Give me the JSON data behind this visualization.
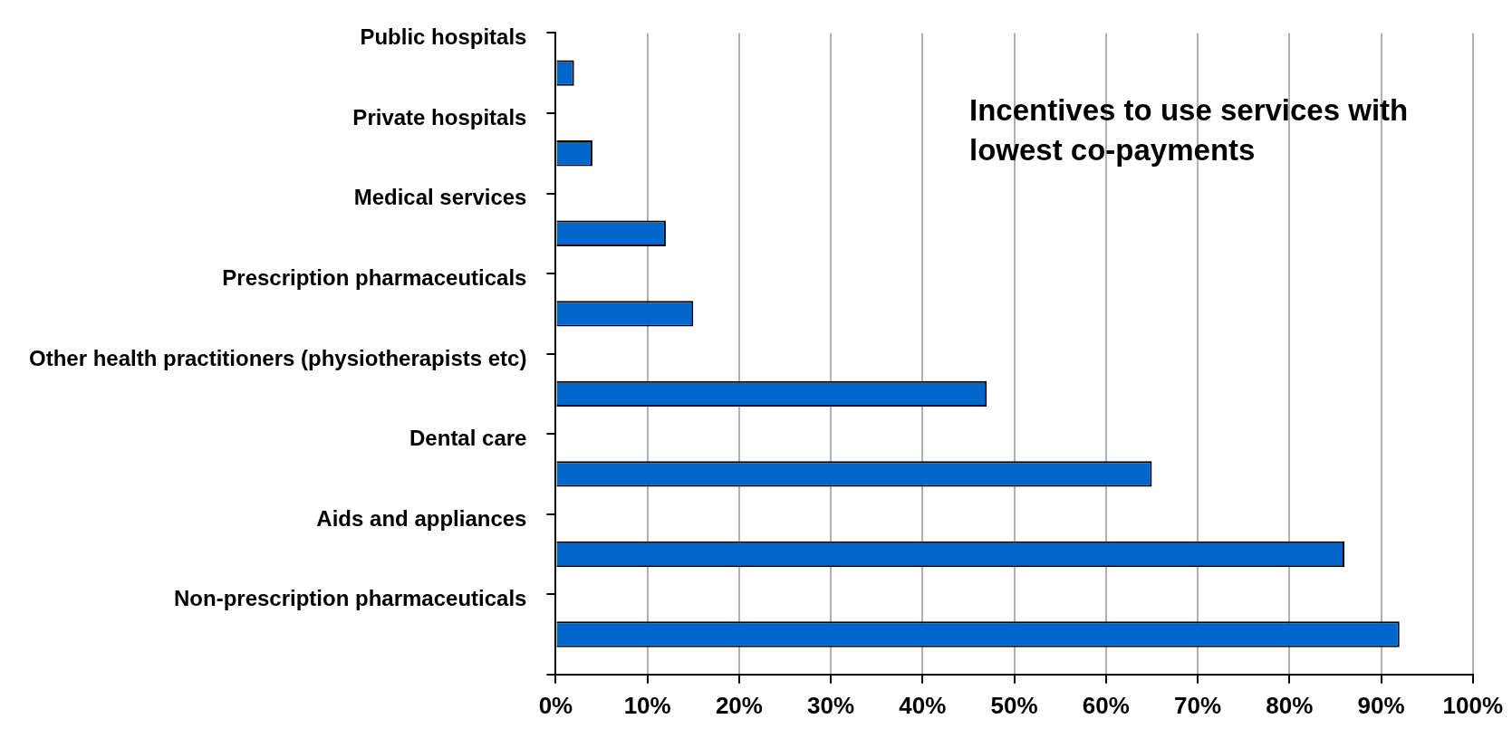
{
  "chart_data": {
    "type": "bar",
    "orientation": "horizontal",
    "categories": [
      "Public hospitals",
      "Private hospitals",
      "Medical services",
      "Prescription pharmaceuticals",
      "Other health practitioners (physiotherapists etc)",
      "Dental care",
      "Aids and appliances",
      "Non-prescription pharmaceuticals"
    ],
    "values": [
      2,
      4,
      12,
      15,
      47,
      65,
      86,
      92
    ],
    "color": "#0066cc",
    "xlim": [
      0,
      100
    ],
    "xticks": [
      {
        "value": 0,
        "label": "0%"
      },
      {
        "value": 10,
        "label": "10%"
      },
      {
        "value": 20,
        "label": "20%"
      },
      {
        "value": 30,
        "label": "30%"
      },
      {
        "value": 40,
        "label": "40%"
      },
      {
        "value": 50,
        "label": "50%"
      },
      {
        "value": 60,
        "label": "60%"
      },
      {
        "value": 70,
        "label": "70%"
      },
      {
        "value": 80,
        "label": "80%"
      },
      {
        "value": 90,
        "label": "90%"
      },
      {
        "value": 100,
        "label": "100%"
      }
    ],
    "grid": "x",
    "legend": false,
    "annotations": [
      "Incentives to use services with lowest co-payments"
    ]
  }
}
